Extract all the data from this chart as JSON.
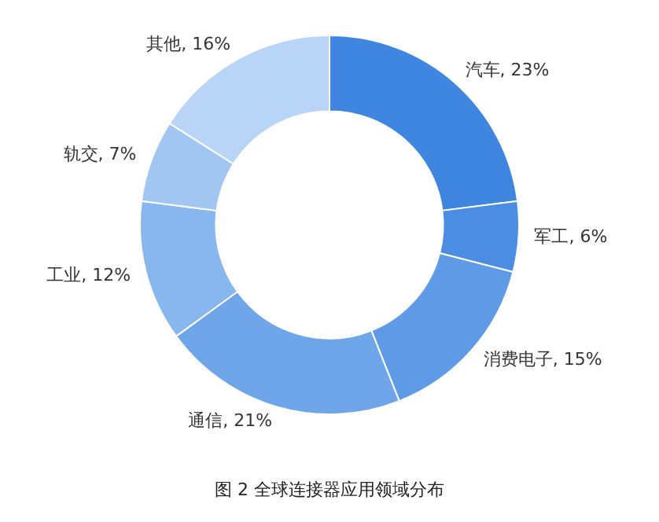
{
  "chart_data": {
    "type": "donut",
    "categories": [
      "汽车",
      "军工",
      "消费电子",
      "通信",
      "工业",
      "轨交",
      "其他"
    ],
    "values": [
      23,
      6,
      15,
      21,
      12,
      7,
      16
    ],
    "value_labels": [
      "23%",
      "6%",
      "15%",
      "21%",
      "12%",
      "7%",
      "16%"
    ],
    "colors": [
      "#3f86e0",
      "#4a8de3",
      "#5f9ae6",
      "#6fa6ea",
      "#88b6ee",
      "#a2c6f2",
      "#b8d4f6"
    ],
    "annotations": [
      "图 2  全球连接器应用领域分布"
    ]
  }
}
